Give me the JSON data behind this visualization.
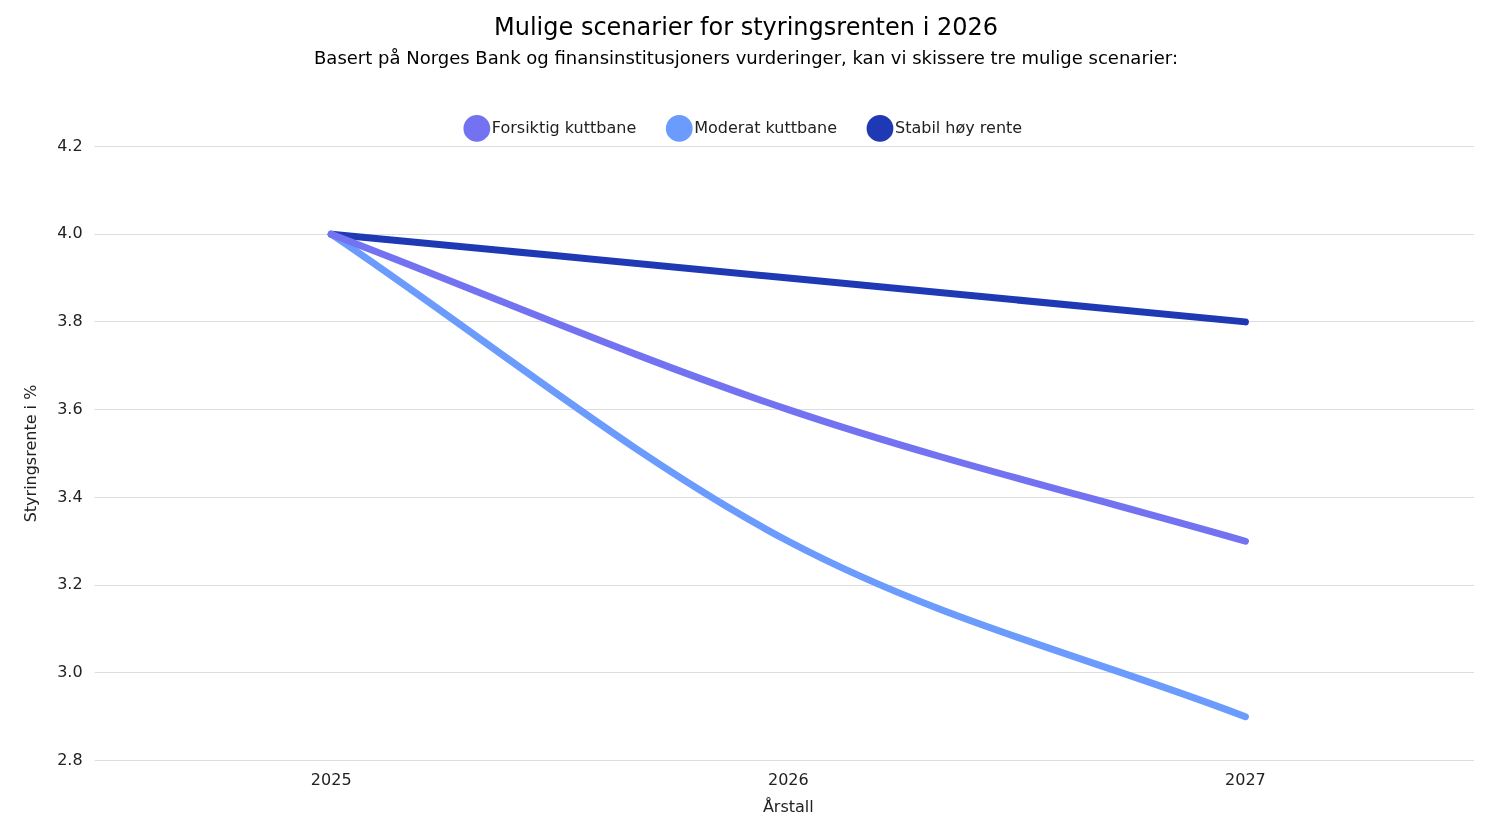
{
  "chart_data": {
    "type": "line",
    "title": "Mulige scenarier for styringsrenten i 2026",
    "subtitle": "Basert på Norges Bank og finansinstitusjoners vurderinger, kan vi skissere tre mulige scenarier:",
    "xlabel": "Årstall",
    "ylabel": "Styringsrente i %",
    "categories": [
      "2025",
      "2026",
      "2027"
    ],
    "series": [
      {
        "name": "Forsiktig kuttbane",
        "color": "#7373f2",
        "values": [
          4.0,
          3.6,
          3.3
        ]
      },
      {
        "name": "Moderat kuttbane",
        "color": "#6b9bfc",
        "values": [
          4.0,
          3.3,
          2.9
        ]
      },
      {
        "name": "Stabil høy rente",
        "color": "#1f39b5",
        "values": [
          4.0,
          3.9,
          3.8
        ]
      }
    ],
    "ylim": [
      2.8,
      4.2
    ],
    "yticks": [
      2.8,
      {
        "value": 3.0,
        "label": "3.0"
      },
      3.2,
      3.4,
      3.6,
      3.8,
      {
        "value": 4.0,
        "label": "4.0"
      },
      4.2
    ],
    "grid": "y",
    "legend": "top",
    "marker": "none",
    "line_style": "solid"
  }
}
